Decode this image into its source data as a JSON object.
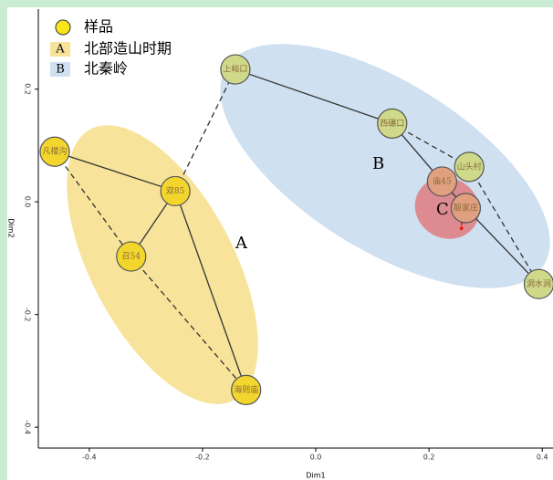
{
  "chart_data": {
    "type": "scatter",
    "legend": {
      "marker": "样品",
      "groups": [
        {
          "key": "A",
          "name": "北部造山时期",
          "color": "#f7e39a"
        },
        {
          "key": "B",
          "name": "北秦岭",
          "color": "#cfe0f0"
        }
      ]
    },
    "region_labels": [
      "A",
      "B",
      "C",
      "?"
    ],
    "x_label": "Dim1",
    "y_label": "Dim2",
    "xlim": [
      -0.49,
      0.419
    ],
    "ylim": [
      -0.437,
      0.342
    ],
    "xticks": [
      -0.4,
      -0.2,
      {
        "value": 0,
        "label": "0.0"
      },
      0.2,
      0.4
    ],
    "yticks": [
      0.2,
      {
        "value": 0,
        "label": "0.0"
      },
      -0.2,
      -0.4
    ],
    "series": [
      {
        "name": "样品",
        "labels": [
          "凡楼沟",
          "双85",
          "召54",
          "海则庙",
          "上峪口",
          "西碾口",
          "山头村",
          "庙45",
          "殷家庄",
          "洞水涧"
        ],
        "x": [
          -0.461,
          -0.248,
          -0.326,
          -0.123,
          -0.142,
          0.135,
          0.271,
          0.223,
          0.265,
          0.394
        ],
        "values": [
          0.089,
          0.019,
          -0.097,
          -0.334,
          0.235,
          0.139,
          0.062,
          0.036,
          -0.011,
          -0.146
        ],
        "colors": [
          "#f2d62e",
          "#f2d62e",
          "#f2d62e",
          "#f2d62e",
          "#cfd98a",
          "#cfd98a",
          "#cfd98a",
          "#e0a080",
          "#e0a080",
          "#cfd98a"
        ]
      }
    ],
    "links": [
      {
        "from": 0,
        "to": 1,
        "style": "solid"
      },
      {
        "from": 1,
        "to": 2,
        "style": "solid"
      },
      {
        "from": 1,
        "to": 3,
        "style": "solid"
      },
      {
        "from": 0,
        "to": 2,
        "style": "dashed"
      },
      {
        "from": 2,
        "to": 3,
        "style": "dashed"
      },
      {
        "from": 1,
        "to": 4,
        "style": "dashed"
      },
      {
        "from": 4,
        "to": 5,
        "style": "solid"
      },
      {
        "from": 5,
        "to": 7,
        "style": "solid"
      },
      {
        "from": 7,
        "to": 8,
        "style": "solid"
      },
      {
        "from": 8,
        "to": 9,
        "style": "solid"
      },
      {
        "from": 5,
        "to": 6,
        "style": "dashed"
      },
      {
        "from": 6,
        "to": 9,
        "style": "dashed"
      }
    ]
  }
}
